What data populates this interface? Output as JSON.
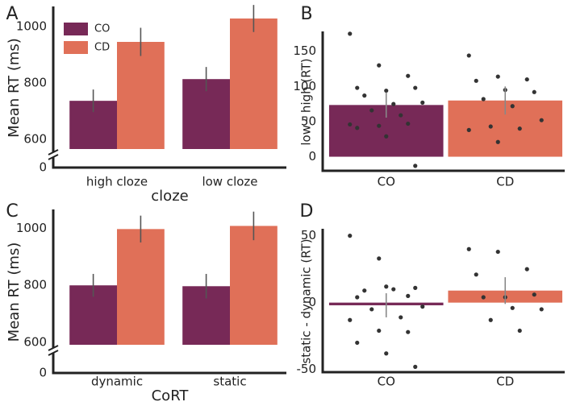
{
  "chart_data": [
    {
      "type": "grouped_bar",
      "panel": "A",
      "ylabel": "Mean RT (ms)",
      "xlabel": "cloze",
      "categories": [
        "high cloze",
        "low cloze"
      ],
      "series": [
        {
          "name": "CO",
          "color": "#772957",
          "values": [
            737,
            814
          ],
          "errors": [
            40,
            43
          ]
        },
        {
          "name": "CD",
          "color": "#e07058",
          "values": [
            946,
            1029
          ],
          "errors": [
            50,
            48
          ]
        }
      ],
      "ylim": [
        566,
        1066
      ],
      "yticks": [
        0,
        600,
        800,
        1000
      ],
      "axis_break": true,
      "legend": "upper left"
    },
    {
      "type": "bar_points",
      "panel": "B",
      "ylabel": "low - high (RT)",
      "categories": [
        "CO",
        "CD"
      ],
      "values": [
        73.6,
        80
      ],
      "errors": [
        18,
        20
      ],
      "colors": [
        "#772957",
        "#e07058"
      ],
      "points": [
        [
          175,
          130,
          115,
          98,
          94,
          98,
          87,
          75,
          77,
          66,
          59,
          46,
          44,
          47,
          41,
          29,
          -13
        ],
        [
          144,
          114,
          110,
          108,
          95,
          92,
          82,
          72,
          52,
          43,
          40,
          38,
          21
        ]
      ],
      "ylim": [
        -20,
        176
      ],
      "yticks": [
        0,
        50,
        100,
        150
      ]
    },
    {
      "type": "grouped_bar",
      "panel": "C",
      "ylabel": "Mean RT (ms)",
      "xlabel": "CoRT",
      "categories": [
        "dynamic",
        "static"
      ],
      "series": [
        {
          "name": "CO",
          "color": "#772957",
          "values": [
            800,
            797
          ],
          "errors": [
            40,
            43
          ]
        },
        {
          "name": "CD",
          "color": "#e07058",
          "values": [
            997,
            1008
          ],
          "errors": [
            47,
            50
          ]
        }
      ],
      "ylim": [
        592,
        1060
      ],
      "yticks": [
        0,
        600,
        800,
        1000
      ],
      "axis_break": true,
      "legend": false
    },
    {
      "type": "bar_points",
      "panel": "D",
      "ylabel": "static - dynamic (RT)",
      "categories": [
        "CO",
        "CD"
      ],
      "values": [
        -2,
        9
      ],
      "errors": [
        9,
        10
      ],
      "colors": [
        "#772957",
        "#e07058"
      ],
      "points": [
        [
          50,
          33,
          5,
          4,
          12,
          11,
          9,
          10,
          -3,
          -5,
          -11,
          -13,
          -21,
          -22,
          -30,
          -38,
          -48
        ],
        [
          40,
          38,
          25,
          21,
          4,
          6,
          4,
          -4,
          -5,
          -13,
          -21
        ]
      ],
      "ylim": [
        -52,
        54
      ],
      "yticks": [
        -50,
        0,
        50
      ]
    }
  ]
}
